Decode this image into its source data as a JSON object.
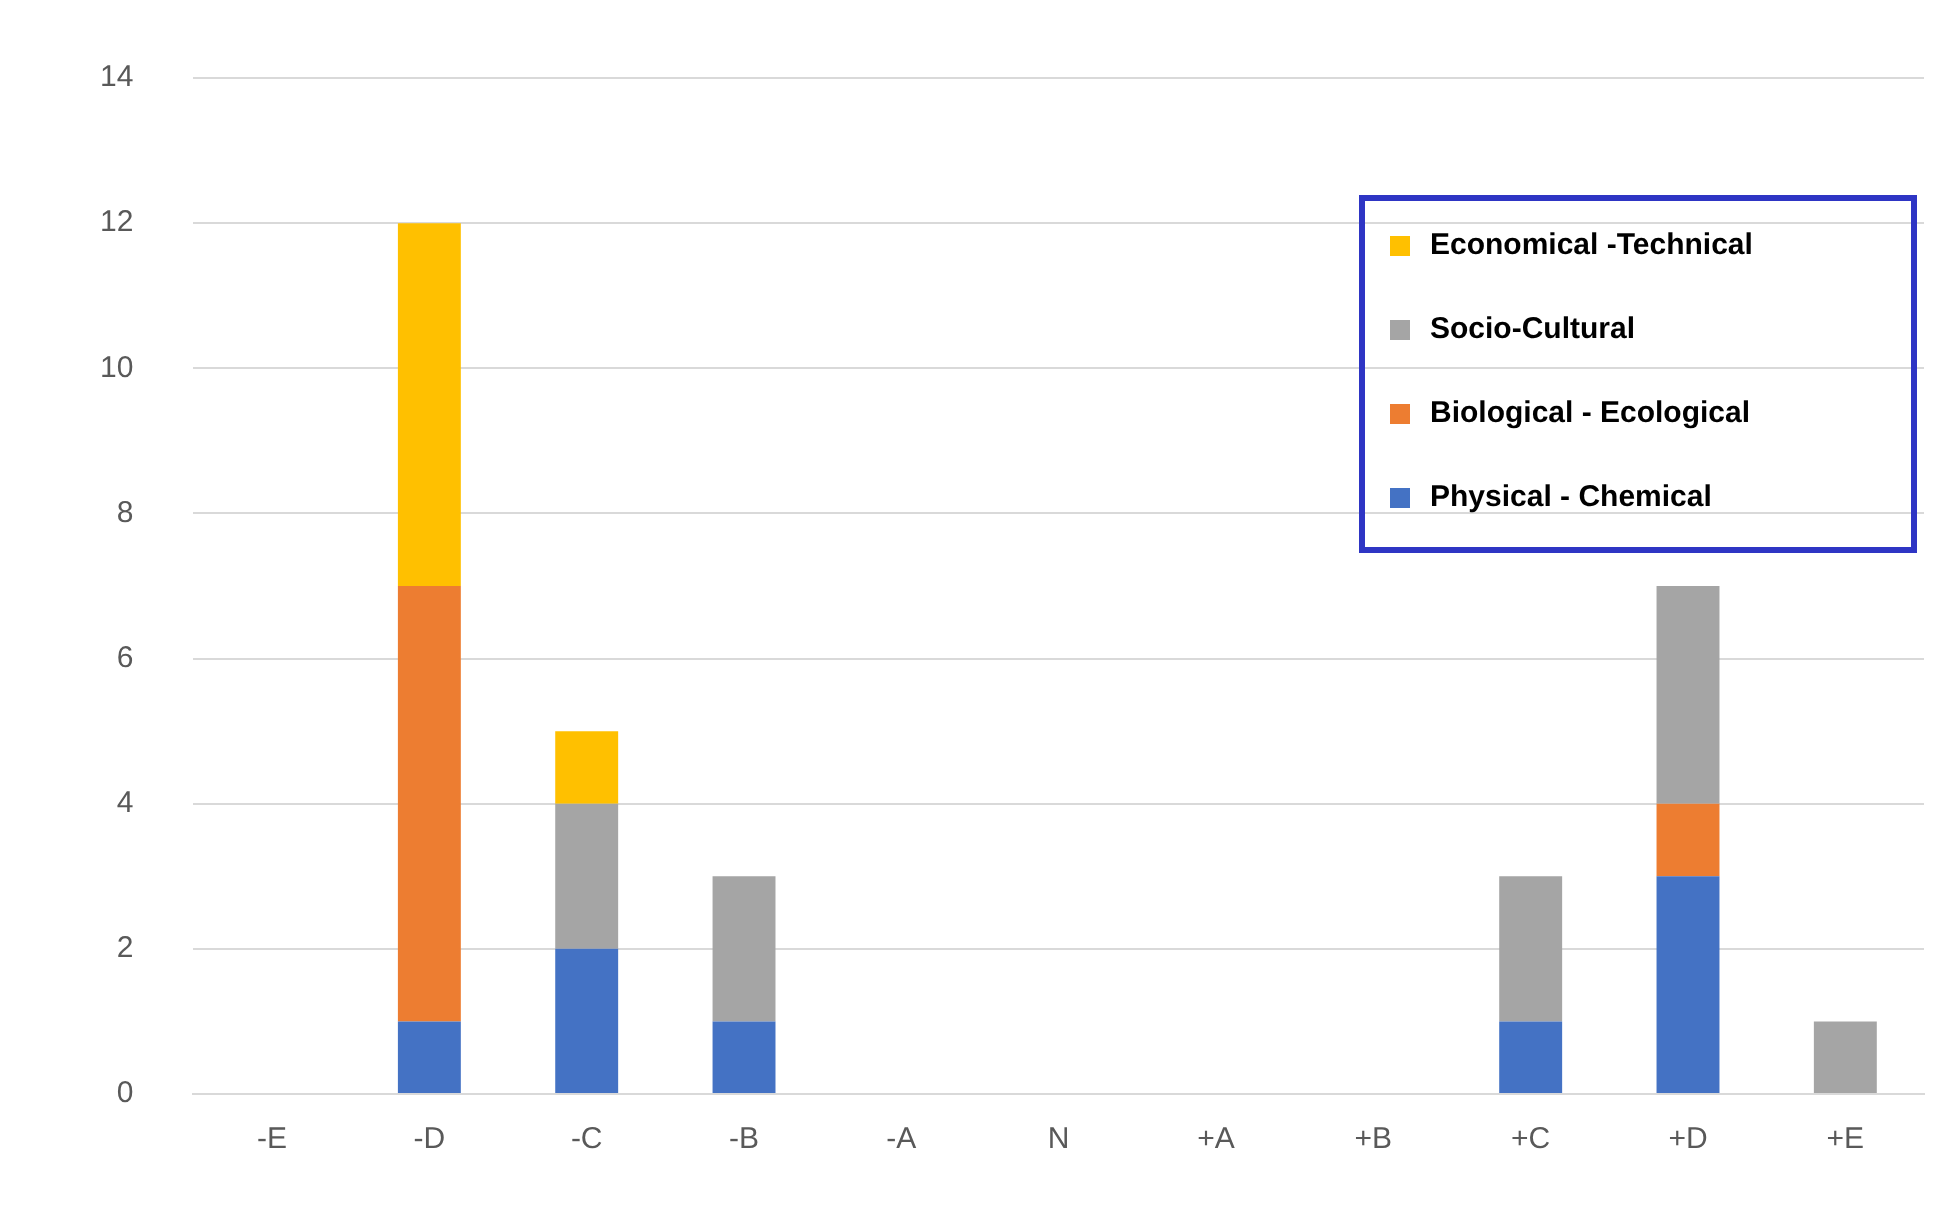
{
  "chart_data": {
    "type": "bar",
    "stacked": true,
    "categories": [
      "-E",
      "-D",
      "-C",
      "-B",
      "-A",
      "N",
      "+A",
      "+B",
      "+C",
      "+D",
      "+E"
    ],
    "series": [
      {
        "name": "Physical - Chemical",
        "color": "#4472c4",
        "values": [
          0,
          1,
          2,
          1,
          0,
          0,
          0,
          0,
          1,
          3,
          0
        ]
      },
      {
        "name": "Biological - Ecological",
        "color": "#ed7d31",
        "values": [
          0,
          6,
          0,
          0,
          0,
          0,
          0,
          0,
          0,
          1,
          0
        ]
      },
      {
        "name": "Socio-Cultural",
        "color": "#a5a5a5",
        "values": [
          0,
          0,
          2,
          2,
          0,
          0,
          0,
          0,
          2,
          3,
          1
        ]
      },
      {
        "name": "Economical -Technical",
        "color": "#ffc000",
        "values": [
          0,
          5,
          1,
          0,
          0,
          0,
          0,
          0,
          0,
          0,
          0
        ]
      }
    ],
    "ylim": [
      0,
      14
    ],
    "yticks": [
      0,
      2,
      4,
      6,
      8,
      10,
      12,
      14
    ],
    "grid": "y",
    "legend": "top right"
  }
}
